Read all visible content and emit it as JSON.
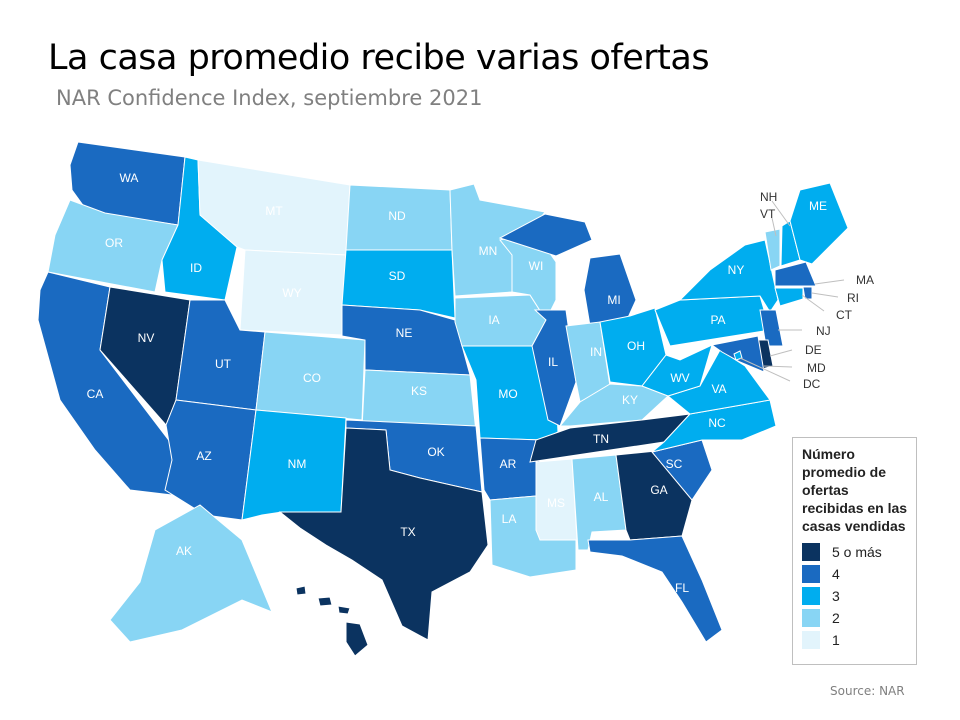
{
  "title": "La casa promedio recibe varias ofertas",
  "subtitle": "NAR Confidence Index, septiembre 2021",
  "source": "Source:  NAR",
  "legend": {
    "title": "Número promedio de ofertas recibidas en las casas vendidas",
    "entries": [
      {
        "label": "5 o más",
        "value": 5,
        "color": "#0b3360"
      },
      {
        "label": "4",
        "value": 4,
        "color": "#1a6ac1"
      },
      {
        "label": "3",
        "value": 3,
        "color": "#00adef"
      },
      {
        "label": "2",
        "value": 2,
        "color": "#88d5f4"
      },
      {
        "label": "1",
        "value": 1,
        "color": "#e2f4fc"
      }
    ]
  },
  "chart_data": {
    "type": "choropleth",
    "region": "United States",
    "states": [
      {
        "abbr": "WA",
        "value": 4
      },
      {
        "abbr": "OR",
        "value": 2
      },
      {
        "abbr": "CA",
        "value": 4
      },
      {
        "abbr": "NV",
        "value": 5
      },
      {
        "abbr": "ID",
        "value": 3
      },
      {
        "abbr": "MT",
        "value": 1
      },
      {
        "abbr": "WY",
        "value": 1
      },
      {
        "abbr": "UT",
        "value": 4
      },
      {
        "abbr": "AZ",
        "value": 4
      },
      {
        "abbr": "CO",
        "value": 2
      },
      {
        "abbr": "NM",
        "value": 3
      },
      {
        "abbr": "ND",
        "value": 2
      },
      {
        "abbr": "SD",
        "value": 3
      },
      {
        "abbr": "NE",
        "value": 4
      },
      {
        "abbr": "KS",
        "value": 2
      },
      {
        "abbr": "OK",
        "value": 4
      },
      {
        "abbr": "TX",
        "value": 5
      },
      {
        "abbr": "MN",
        "value": 2
      },
      {
        "abbr": "IA",
        "value": 2
      },
      {
        "abbr": "MO",
        "value": 3
      },
      {
        "abbr": "AR",
        "value": 4
      },
      {
        "abbr": "LA",
        "value": 2
      },
      {
        "abbr": "WI",
        "value": 2
      },
      {
        "abbr": "IL",
        "value": 4
      },
      {
        "abbr": "MI",
        "value": 4
      },
      {
        "abbr": "IN",
        "value": 2
      },
      {
        "abbr": "OH",
        "value": 3
      },
      {
        "abbr": "KY",
        "value": 2
      },
      {
        "abbr": "TN",
        "value": 5
      },
      {
        "abbr": "MS",
        "value": 1
      },
      {
        "abbr": "AL",
        "value": 2
      },
      {
        "abbr": "GA",
        "value": 5
      },
      {
        "abbr": "FL",
        "value": 4
      },
      {
        "abbr": "SC",
        "value": 4
      },
      {
        "abbr": "NC",
        "value": 3
      },
      {
        "abbr": "VA",
        "value": 3
      },
      {
        "abbr": "WV",
        "value": 3
      },
      {
        "abbr": "PA",
        "value": 3
      },
      {
        "abbr": "NY",
        "value": 3
      },
      {
        "abbr": "VT",
        "value": 2
      },
      {
        "abbr": "NH",
        "value": 3
      },
      {
        "abbr": "ME",
        "value": 3
      },
      {
        "abbr": "MA",
        "value": 4
      },
      {
        "abbr": "RI",
        "value": 4
      },
      {
        "abbr": "CT",
        "value": 3
      },
      {
        "abbr": "NJ",
        "value": 4
      },
      {
        "abbr": "DE",
        "value": 5
      },
      {
        "abbr": "MD",
        "value": 4
      },
      {
        "abbr": "DC",
        "value": 3
      },
      {
        "abbr": "AK",
        "value": 2
      },
      {
        "abbr": "HI",
        "value": 5
      }
    ]
  }
}
